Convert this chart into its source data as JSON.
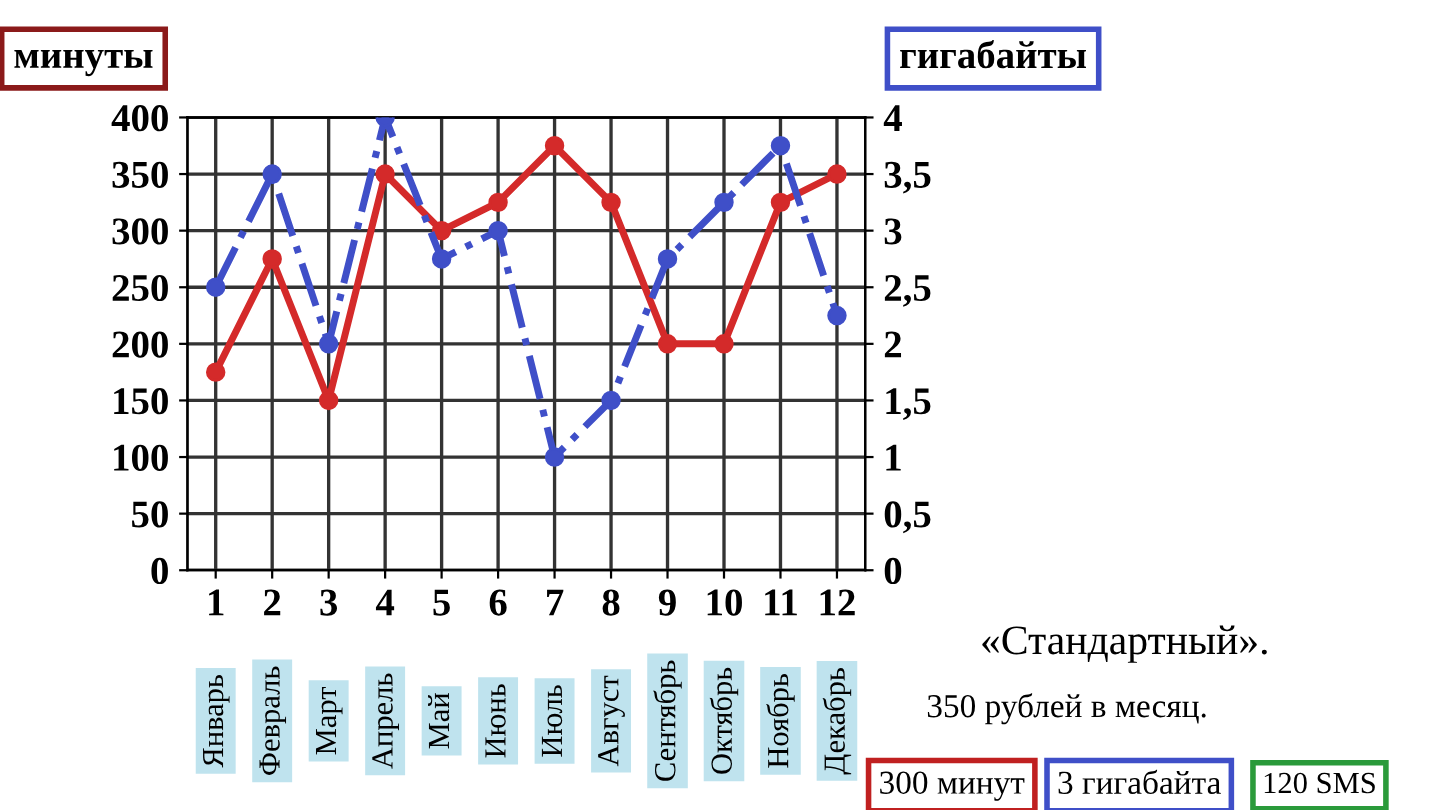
{
  "chart_data": {
    "type": "line",
    "ylabel": "минуты",
    "y2label": "гигабайты",
    "categories": [
      "1",
      "2",
      "3",
      "4",
      "5",
      "6",
      "7",
      "8",
      "9",
      "10",
      "11",
      "12"
    ],
    "series": [
      {
        "color": "#d42a2a",
        "values": [
          175,
          275,
          150,
          350,
          300,
          325,
          375,
          325,
          200,
          200,
          325,
          350
        ],
        "marker": "circle",
        "line_style": "solid"
      },
      {
        "color": "#3f4fc8",
        "axis": "y2",
        "values": [
          2.5,
          3.5,
          2.0,
          4.0,
          2.75,
          3.0,
          1.0,
          1.5,
          2.75,
          3.25,
          3.75,
          2.25
        ],
        "marker": "circle",
        "line_style": "dashdot"
      }
    ],
    "ylim": [
      0,
      400
    ],
    "yticks": [
      0,
      50,
      100,
      150,
      200,
      250,
      300,
      350,
      400
    ],
    "y2lim": [
      0,
      4
    ],
    "y2ticks": [
      0,
      {
        "value": 0.5,
        "label": "0,5"
      },
      1,
      {
        "value": 1.5,
        "label": "1,5"
      },
      2,
      {
        "value": 2.5,
        "label": "2,5"
      },
      3,
      {
        "value": 3.5,
        "label": "3,5"
      },
      4
    ],
    "grid": true,
    "legend": false,
    "annotations": [
      "Январь",
      "Февраль",
      "Март",
      "Апрель",
      "Май",
      "Июнь",
      "Июль",
      "Август",
      "Сентябрь",
      "Октябрь",
      "Ноябрь",
      "Декабрь",
      "«Стандартный».",
      "350 рублей в месяц.",
      "300 минут",
      "3 гигабайта",
      "120 SMS"
    ]
  }
}
